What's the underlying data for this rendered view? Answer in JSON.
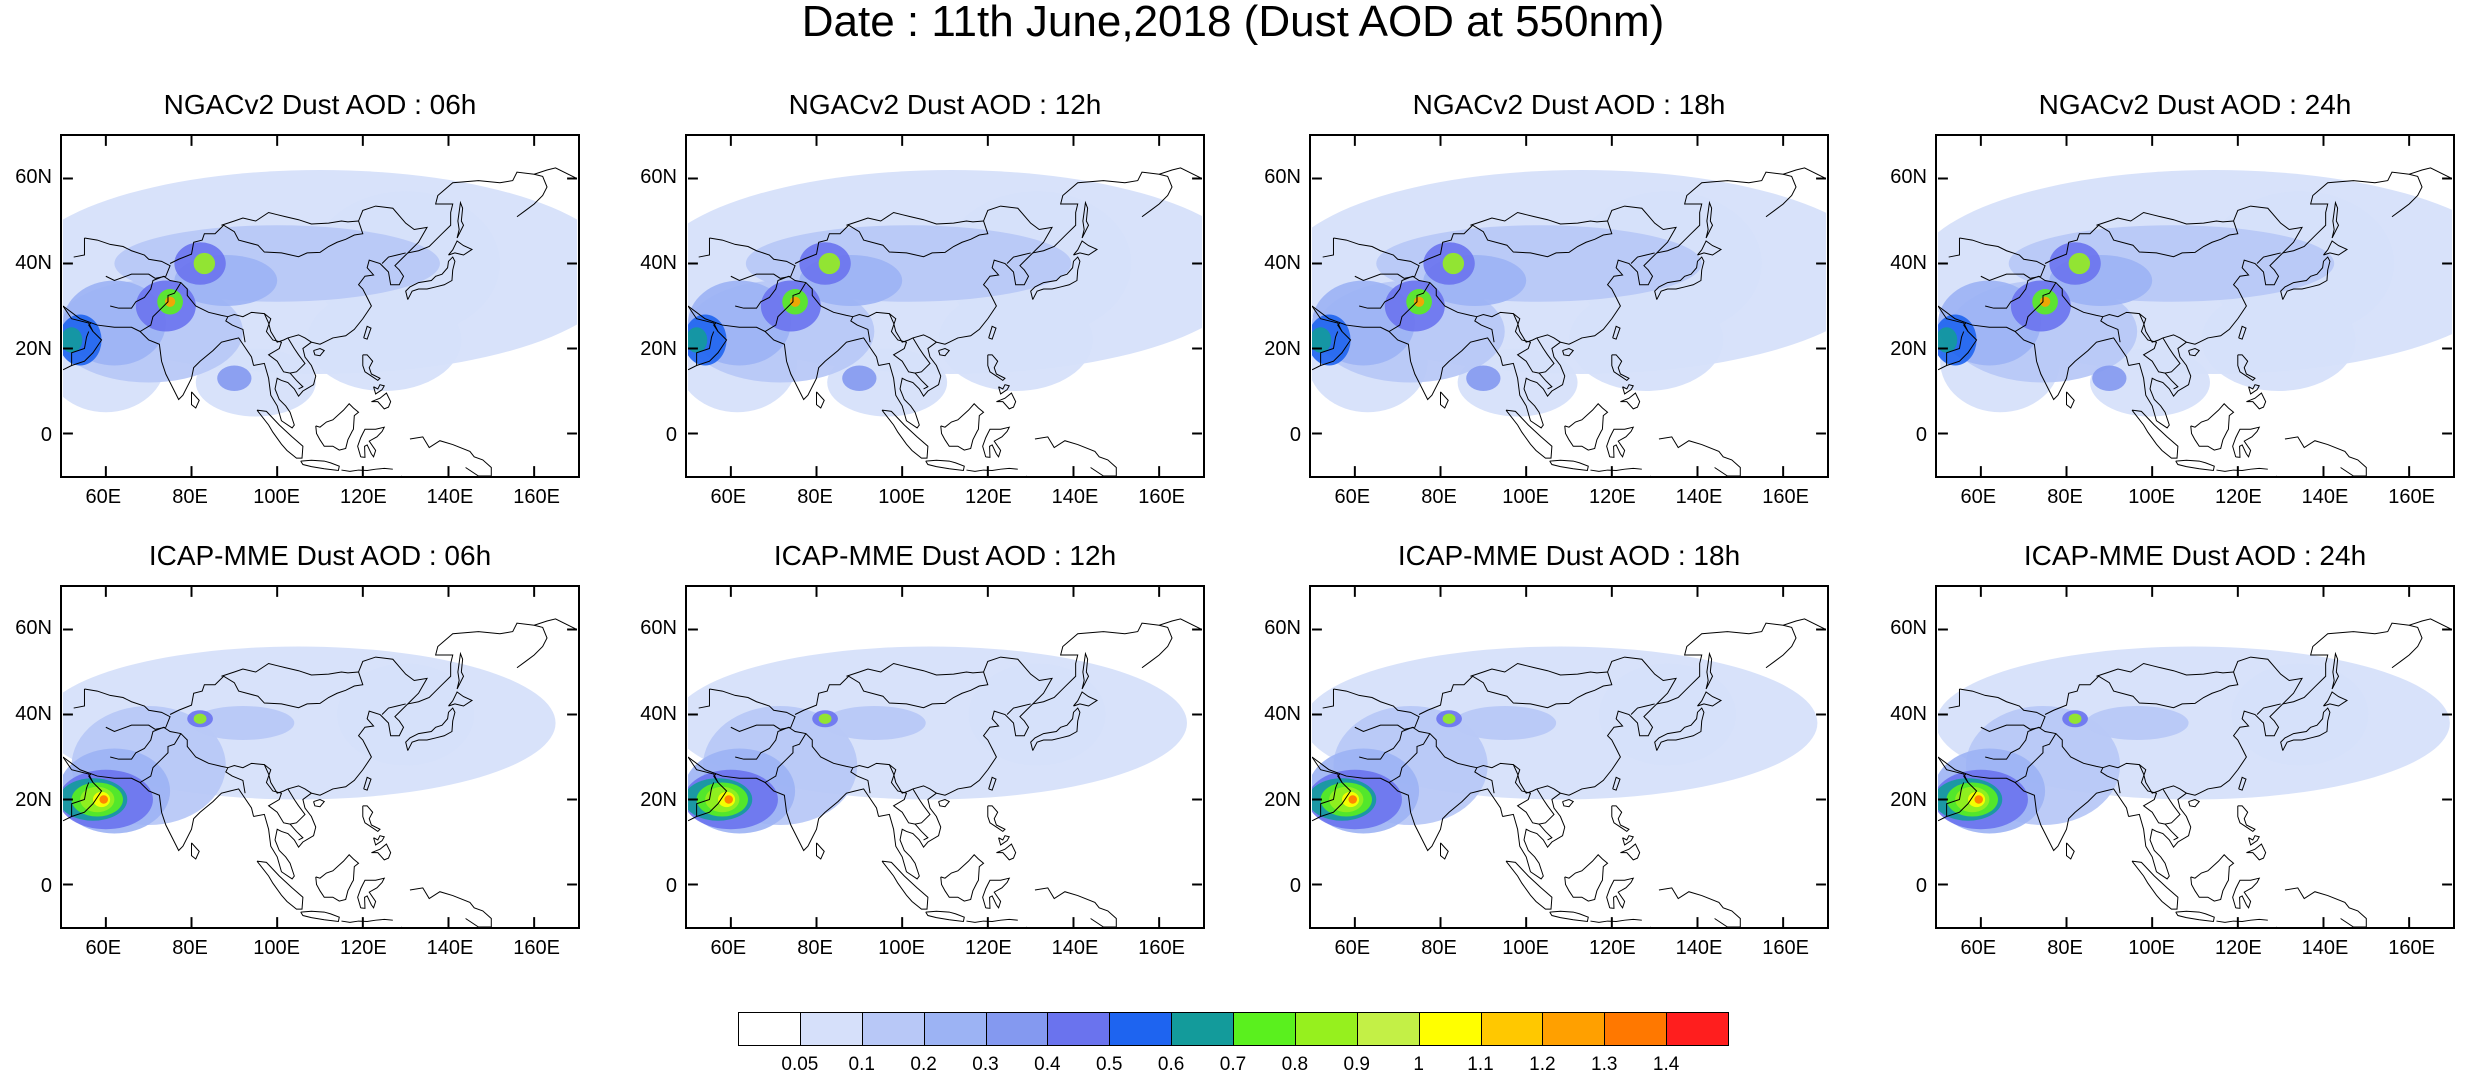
{
  "figure": {
    "title": "Date : 11th June,2018 (Dust AOD at 550nm)"
  },
  "panels": [
    {
      "title": "NGACv2 Dust AOD : 06h",
      "model": "NGACv2",
      "lead": "06h"
    },
    {
      "title": "NGACv2 Dust AOD : 12h",
      "model": "NGACv2",
      "lead": "12h"
    },
    {
      "title": "NGACv2 Dust AOD : 18h",
      "model": "NGACv2",
      "lead": "18h"
    },
    {
      "title": "NGACv2 Dust AOD : 24h",
      "model": "NGACv2",
      "lead": "24h"
    },
    {
      "title": "ICAP-MME Dust AOD : 06h",
      "model": "ICAP-MME",
      "lead": "06h"
    },
    {
      "title": "ICAP-MME Dust AOD : 12h",
      "model": "ICAP-MME",
      "lead": "12h"
    },
    {
      "title": "ICAP-MME Dust AOD : 18h",
      "model": "ICAP-MME",
      "lead": "18h"
    },
    {
      "title": "ICAP-MME Dust AOD : 24h",
      "model": "ICAP-MME",
      "lead": "24h"
    }
  ],
  "axes": {
    "lat_labels": [
      "60N",
      "40N",
      "20N",
      "0"
    ],
    "lat_values": [
      60,
      40,
      20,
      0
    ],
    "lon_labels": [
      "60E",
      "80E",
      "100E",
      "120E",
      "140E",
      "160E"
    ],
    "lon_values": [
      60,
      80,
      100,
      120,
      140,
      160
    ],
    "lon_range": [
      50,
      170
    ],
    "lat_range": [
      -10,
      70
    ]
  },
  "colorbar": {
    "labels": [
      "0.05",
      "0.1",
      "0.2",
      "0.3",
      "0.4",
      "0.5",
      "0.6",
      "0.7",
      "0.8",
      "0.9",
      "1",
      "1.1",
      "1.2",
      "1.3",
      "1.4"
    ],
    "colors": [
      "#ffffff",
      "#d6e0fa",
      "#b8c8f7",
      "#9cb3f4",
      "#8499f0",
      "#6a73ee",
      "#1e64f0",
      "#139b9b",
      "#5af01e",
      "#96f01e",
      "#c3f046",
      "#ffff00",
      "#ffc800",
      "#ffa000",
      "#ff7800",
      "#ff1e1e"
    ]
  },
  "dust_hotspots": {
    "NGACv2": [
      {
        "lon": 83,
        "lat": 40,
        "aod": 1.0
      },
      {
        "lon": 75,
        "lat": 31,
        "aod": 1.4
      },
      {
        "lon": 52,
        "lat": 22,
        "aod": 0.7
      }
    ],
    "ICAP-MME": [
      {
        "lon": 60,
        "lat": 20,
        "aod": 1.4
      },
      {
        "lon": 82,
        "lat": 39,
        "aod": 0.9
      }
    ]
  }
}
